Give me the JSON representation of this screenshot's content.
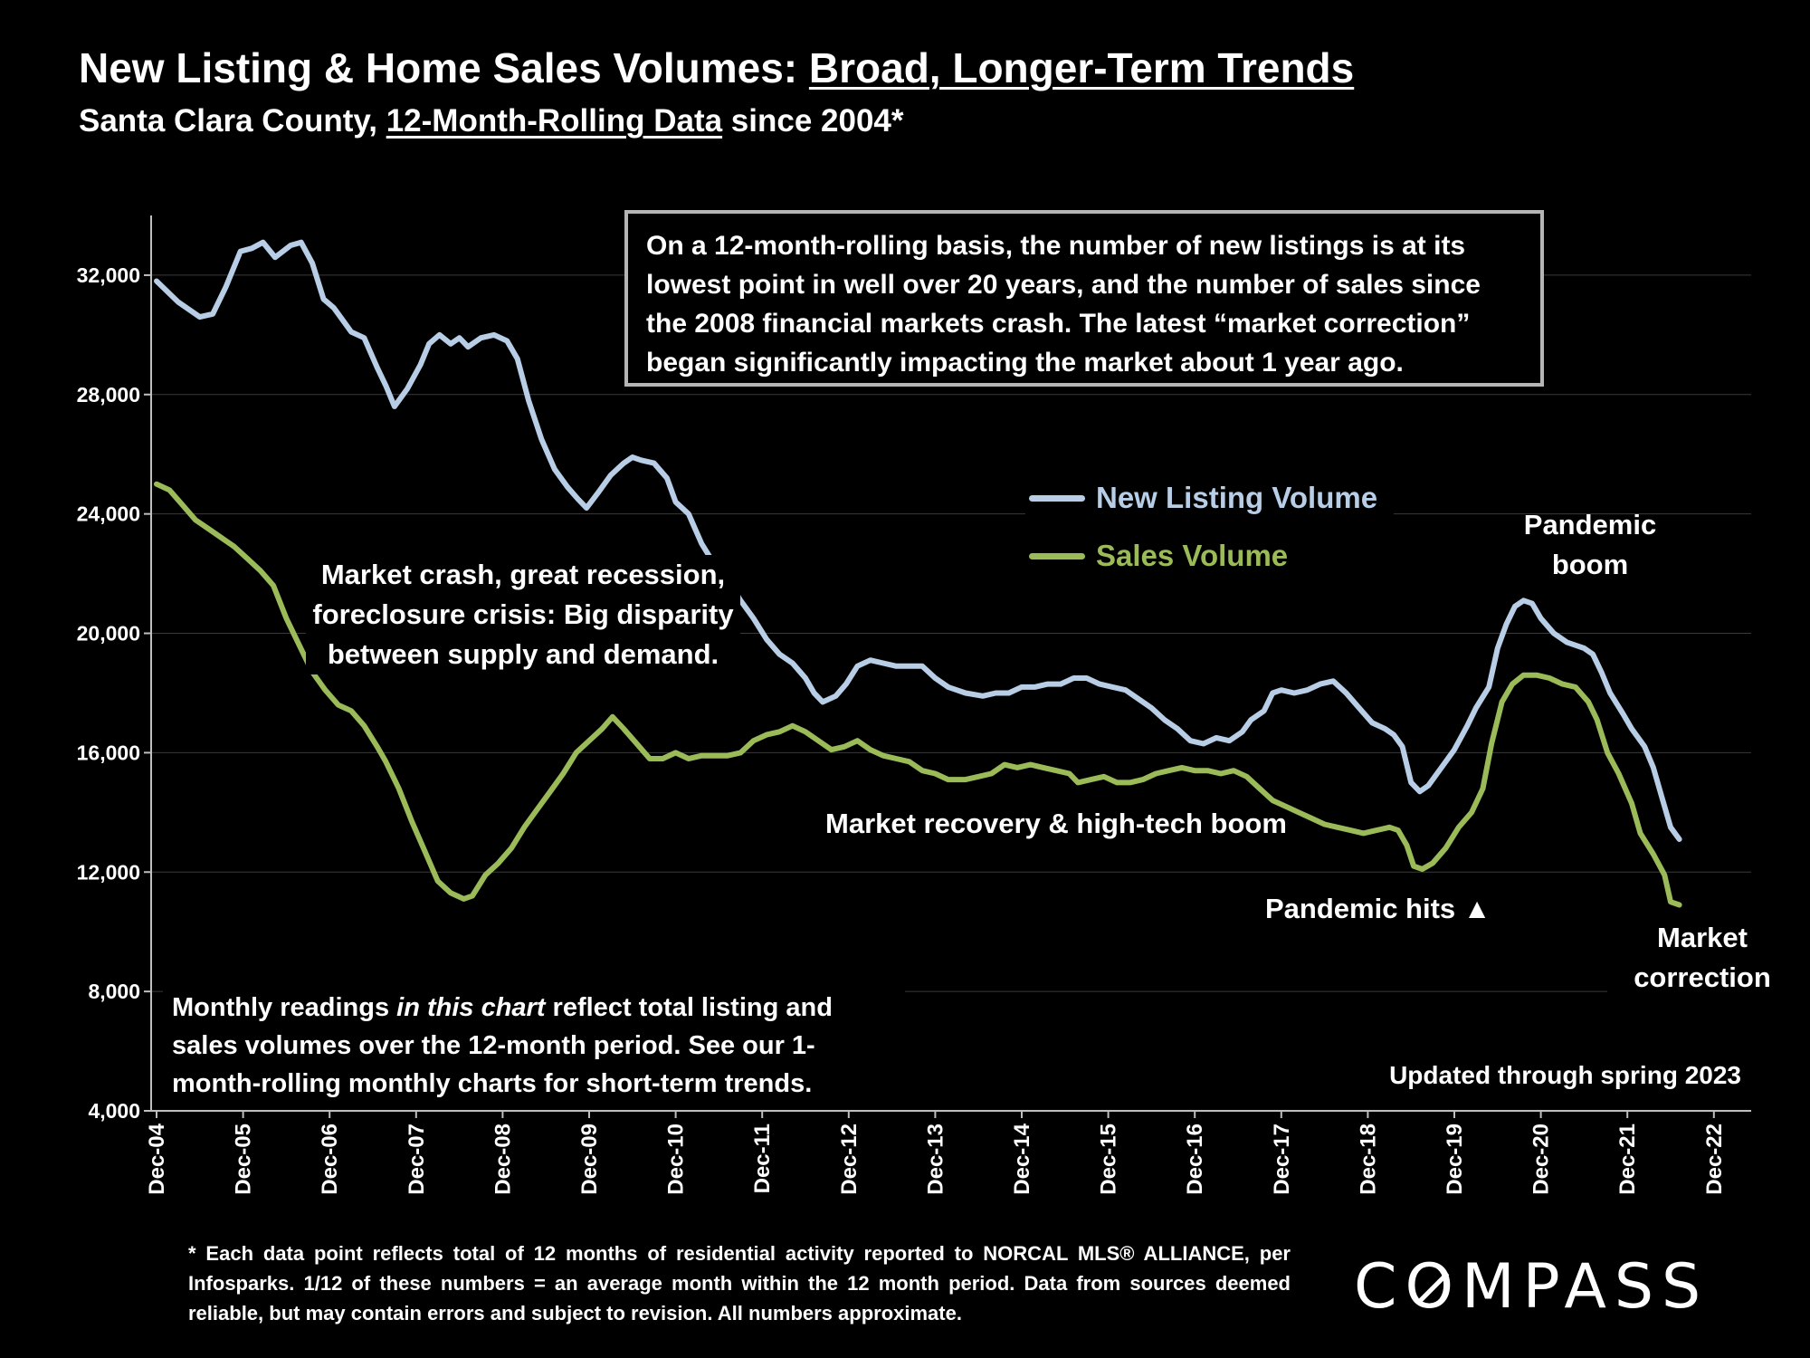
{
  "header": {
    "title_prefix": "New Listing & Home Sales Volumes: ",
    "title_underlined": "Broad, Longer-Term Trends",
    "subtitle_prefix": "Santa Clara County, ",
    "subtitle_underlined": "12-Month-Rolling Data",
    "subtitle_suffix": " since 2004*"
  },
  "info_box": "On a 12-month-rolling basis, the number of new listings is at its lowest point in well over 20 years, and the number of sales since the 2008 financial markets crash. The latest “market correction” began significantly impacting the market about 1 year ago.",
  "annotations": {
    "crash": "Market crash,  great recession, foreclosure crisis: Big disparity between supply and demand.",
    "recovery": "Market recovery & high-tech boom",
    "pandemic_boom": "Pandemic boom",
    "pandemic_hits": "Pandemic hits ▲",
    "market_correction": "Market correction"
  },
  "note": {
    "before": "Monthly readings ",
    "italic": "in this chart",
    "after": " reflect total listing and sales volumes over the 12-month period. See our 1-month-rolling monthly charts for short-term trends."
  },
  "updated": "Updated through spring 2023",
  "footnote": "* Each data point reflects total of 12 months of residential activity reported to NORCAL MLS® ALLIANCE, per Infosparks. 1/12 of these numbers = an average month within the 12 month period. Data from sources deemed reliable, but may contain errors and subject to revision. All numbers approximate.",
  "logo": {
    "before": "C",
    "o": "O",
    "after": "MPASS"
  },
  "colors": {
    "background": "#000000",
    "listing": "#b8cde6",
    "sales": "#9bbb59",
    "grid": "#3a3a3a"
  },
  "chart_data": {
    "type": "line",
    "ylim": [
      4000,
      34000
    ],
    "yticks": [
      4000,
      8000,
      12000,
      16000,
      20000,
      24000,
      28000,
      32000
    ],
    "ytick_labels": [
      "4,000",
      "8,000",
      "12,000",
      "16,000",
      "20,000",
      "24,000",
      "28,000",
      "32,000"
    ],
    "xticks": [
      "Dec-04",
      "Dec-05",
      "Dec-06",
      "Dec-07",
      "Dec-08",
      "Dec-09",
      "Dec-10",
      "Dec-11",
      "Dec-12",
      "Dec-13",
      "Dec-14",
      "Dec-15",
      "Dec-16",
      "Dec-17",
      "Dec-18",
      "Dec-19",
      "Dec-20",
      "Dec-21",
      "Dec-22"
    ],
    "legend_position": "center-right",
    "series": [
      {
        "name": "New Listing Volume",
        "points": [
          [
            2004.95,
            31800
          ],
          [
            2005.2,
            31100
          ],
          [
            2005.45,
            30600
          ],
          [
            2005.6,
            30700
          ],
          [
            2005.75,
            31600
          ],
          [
            2005.92,
            32800
          ],
          [
            2006.05,
            32900
          ],
          [
            2006.18,
            33100
          ],
          [
            2006.32,
            32600
          ],
          [
            2006.5,
            33000
          ],
          [
            2006.62,
            33100
          ],
          [
            2006.75,
            32400
          ],
          [
            2006.88,
            31200
          ],
          [
            2007.0,
            30900
          ],
          [
            2007.2,
            30100
          ],
          [
            2007.35,
            29900
          ],
          [
            2007.5,
            28900
          ],
          [
            2007.6,
            28300
          ],
          [
            2007.7,
            27600
          ],
          [
            2007.85,
            28200
          ],
          [
            2008.0,
            29000
          ],
          [
            2008.1,
            29700
          ],
          [
            2008.22,
            30000
          ],
          [
            2008.35,
            29700
          ],
          [
            2008.45,
            29900
          ],
          [
            2008.55,
            29600
          ],
          [
            2008.7,
            29900
          ],
          [
            2008.85,
            30000
          ],
          [
            2009.0,
            29800
          ],
          [
            2009.12,
            29200
          ],
          [
            2009.25,
            27800
          ],
          [
            2009.4,
            26500
          ],
          [
            2009.55,
            25500
          ],
          [
            2009.7,
            24900
          ],
          [
            2009.82,
            24500
          ],
          [
            2009.92,
            24200
          ],
          [
            2010.05,
            24700
          ],
          [
            2010.2,
            25300
          ],
          [
            2010.35,
            25700
          ],
          [
            2010.45,
            25900
          ],
          [
            2010.55,
            25800
          ],
          [
            2010.7,
            25700
          ],
          [
            2010.85,
            25200
          ],
          [
            2010.95,
            24400
          ],
          [
            2011.1,
            24000
          ],
          [
            2011.25,
            23000
          ],
          [
            2011.4,
            22300
          ],
          [
            2011.55,
            21800
          ],
          [
            2011.7,
            21100
          ],
          [
            2011.85,
            20500
          ],
          [
            2012.0,
            19800
          ],
          [
            2012.15,
            19300
          ],
          [
            2012.3,
            19000
          ],
          [
            2012.45,
            18500
          ],
          [
            2012.55,
            18000
          ],
          [
            2012.65,
            17700
          ],
          [
            2012.8,
            17900
          ],
          [
            2012.92,
            18300
          ],
          [
            2013.05,
            18900
          ],
          [
            2013.2,
            19100
          ],
          [
            2013.35,
            19000
          ],
          [
            2013.5,
            18900
          ],
          [
            2013.65,
            18900
          ],
          [
            2013.8,
            18900
          ],
          [
            2013.95,
            18500
          ],
          [
            2014.1,
            18200
          ],
          [
            2014.3,
            18000
          ],
          [
            2014.5,
            17900
          ],
          [
            2014.65,
            18000
          ],
          [
            2014.8,
            18000
          ],
          [
            2014.95,
            18200
          ],
          [
            2015.1,
            18200
          ],
          [
            2015.25,
            18300
          ],
          [
            2015.4,
            18300
          ],
          [
            2015.55,
            18500
          ],
          [
            2015.7,
            18500
          ],
          [
            2015.85,
            18300
          ],
          [
            2016.0,
            18200
          ],
          [
            2016.15,
            18100
          ],
          [
            2016.3,
            17800
          ],
          [
            2016.45,
            17500
          ],
          [
            2016.6,
            17100
          ],
          [
            2016.75,
            16800
          ],
          [
            2016.9,
            16400
          ],
          [
            2017.05,
            16300
          ],
          [
            2017.2,
            16500
          ],
          [
            2017.35,
            16400
          ],
          [
            2017.5,
            16700
          ],
          [
            2017.6,
            17100
          ],
          [
            2017.75,
            17400
          ],
          [
            2017.85,
            18000
          ],
          [
            2017.95,
            18100
          ],
          [
            2018.1,
            18000
          ],
          [
            2018.25,
            18100
          ],
          [
            2018.4,
            18300
          ],
          [
            2018.55,
            18400
          ],
          [
            2018.7,
            18000
          ],
          [
            2018.85,
            17500
          ],
          [
            2019.0,
            17000
          ],
          [
            2019.15,
            16800
          ],
          [
            2019.25,
            16600
          ],
          [
            2019.35,
            16200
          ],
          [
            2019.45,
            15000
          ],
          [
            2019.55,
            14700
          ],
          [
            2019.65,
            14900
          ],
          [
            2019.8,
            15500
          ],
          [
            2019.95,
            16100
          ],
          [
            2020.1,
            16900
          ],
          [
            2020.2,
            17500
          ],
          [
            2020.35,
            18200
          ],
          [
            2020.45,
            19500
          ],
          [
            2020.55,
            20300
          ],
          [
            2020.65,
            20900
          ],
          [
            2020.75,
            21100
          ],
          [
            2020.85,
            21000
          ],
          [
            2020.95,
            20500
          ],
          [
            2021.1,
            20000
          ],
          [
            2021.25,
            19700
          ],
          [
            2021.35,
            19600
          ],
          [
            2021.45,
            19500
          ],
          [
            2021.55,
            19300
          ],
          [
            2021.65,
            18700
          ],
          [
            2021.75,
            18000
          ],
          [
            2021.9,
            17300
          ],
          [
            2022.0,
            16800
          ],
          [
            2022.15,
            16200
          ],
          [
            2022.25,
            15500
          ],
          [
            2022.35,
            14500
          ],
          [
            2022.45,
            13500
          ],
          [
            2022.55,
            13100
          ]
        ]
      },
      {
        "name": "Sales Volume",
        "points": [
          [
            2004.95,
            25000
          ],
          [
            2005.1,
            24800
          ],
          [
            2005.25,
            24300
          ],
          [
            2005.4,
            23800
          ],
          [
            2005.55,
            23500
          ],
          [
            2005.7,
            23200
          ],
          [
            2005.85,
            22900
          ],
          [
            2006.0,
            22500
          ],
          [
            2006.15,
            22100
          ],
          [
            2006.3,
            21600
          ],
          [
            2006.45,
            20500
          ],
          [
            2006.6,
            19600
          ],
          [
            2006.75,
            18700
          ],
          [
            2006.9,
            18100
          ],
          [
            2007.05,
            17600
          ],
          [
            2007.2,
            17400
          ],
          [
            2007.35,
            16900
          ],
          [
            2007.5,
            16200
          ],
          [
            2007.6,
            15700
          ],
          [
            2007.75,
            14800
          ],
          [
            2007.9,
            13700
          ],
          [
            2008.05,
            12700
          ],
          [
            2008.2,
            11700
          ],
          [
            2008.35,
            11300
          ],
          [
            2008.5,
            11100
          ],
          [
            2008.6,
            11200
          ],
          [
            2008.75,
            11900
          ],
          [
            2008.9,
            12300
          ],
          [
            2009.05,
            12800
          ],
          [
            2009.2,
            13500
          ],
          [
            2009.35,
            14100
          ],
          [
            2009.5,
            14700
          ],
          [
            2009.65,
            15300
          ],
          [
            2009.8,
            16000
          ],
          [
            2009.95,
            16400
          ],
          [
            2010.1,
            16800
          ],
          [
            2010.22,
            17200
          ],
          [
            2010.35,
            16800
          ],
          [
            2010.5,
            16300
          ],
          [
            2010.65,
            15800
          ],
          [
            2010.8,
            15800
          ],
          [
            2010.95,
            16000
          ],
          [
            2011.1,
            15800
          ],
          [
            2011.25,
            15900
          ],
          [
            2011.4,
            15900
          ],
          [
            2011.55,
            15900
          ],
          [
            2011.7,
            16000
          ],
          [
            2011.85,
            16400
          ],
          [
            2012.0,
            16600
          ],
          [
            2012.15,
            16700
          ],
          [
            2012.3,
            16900
          ],
          [
            2012.45,
            16700
          ],
          [
            2012.6,
            16400
          ],
          [
            2012.75,
            16100
          ],
          [
            2012.9,
            16200
          ],
          [
            2013.05,
            16400
          ],
          [
            2013.2,
            16100
          ],
          [
            2013.35,
            15900
          ],
          [
            2013.5,
            15800
          ],
          [
            2013.65,
            15700
          ],
          [
            2013.8,
            15400
          ],
          [
            2013.95,
            15300
          ],
          [
            2014.1,
            15100
          ],
          [
            2014.3,
            15100
          ],
          [
            2014.45,
            15200
          ],
          [
            2014.6,
            15300
          ],
          [
            2014.75,
            15600
          ],
          [
            2014.9,
            15500
          ],
          [
            2015.05,
            15600
          ],
          [
            2015.2,
            15500
          ],
          [
            2015.35,
            15400
          ],
          [
            2015.5,
            15300
          ],
          [
            2015.6,
            15000
          ],
          [
            2015.75,
            15100
          ],
          [
            2015.9,
            15200
          ],
          [
            2016.05,
            15000
          ],
          [
            2016.2,
            15000
          ],
          [
            2016.35,
            15100
          ],
          [
            2016.5,
            15300
          ],
          [
            2016.65,
            15400
          ],
          [
            2016.8,
            15500
          ],
          [
            2016.95,
            15400
          ],
          [
            2017.1,
            15400
          ],
          [
            2017.25,
            15300
          ],
          [
            2017.4,
            15400
          ],
          [
            2017.55,
            15200
          ],
          [
            2017.7,
            14800
          ],
          [
            2017.85,
            14400
          ],
          [
            2018.0,
            14200
          ],
          [
            2018.15,
            14000
          ],
          [
            2018.3,
            13800
          ],
          [
            2018.45,
            13600
          ],
          [
            2018.6,
            13500
          ],
          [
            2018.75,
            13400
          ],
          [
            2018.9,
            13300
          ],
          [
            2019.05,
            13400
          ],
          [
            2019.2,
            13500
          ],
          [
            2019.3,
            13400
          ],
          [
            2019.4,
            12900
          ],
          [
            2019.48,
            12200
          ],
          [
            2019.58,
            12100
          ],
          [
            2019.7,
            12300
          ],
          [
            2019.85,
            12800
          ],
          [
            2020.0,
            13500
          ],
          [
            2020.15,
            14000
          ],
          [
            2020.28,
            14800
          ],
          [
            2020.38,
            16300
          ],
          [
            2020.5,
            17700
          ],
          [
            2020.62,
            18300
          ],
          [
            2020.75,
            18600
          ],
          [
            2020.9,
            18600
          ],
          [
            2021.05,
            18500
          ],
          [
            2021.2,
            18300
          ],
          [
            2021.35,
            18200
          ],
          [
            2021.5,
            17700
          ],
          [
            2021.6,
            17100
          ],
          [
            2021.72,
            16000
          ],
          [
            2021.85,
            15300
          ],
          [
            2022.0,
            14300
          ],
          [
            2022.1,
            13300
          ],
          [
            2022.25,
            12600
          ],
          [
            2022.38,
            11900
          ],
          [
            2022.45,
            11000
          ],
          [
            2022.55,
            10900
          ]
        ]
      }
    ]
  }
}
